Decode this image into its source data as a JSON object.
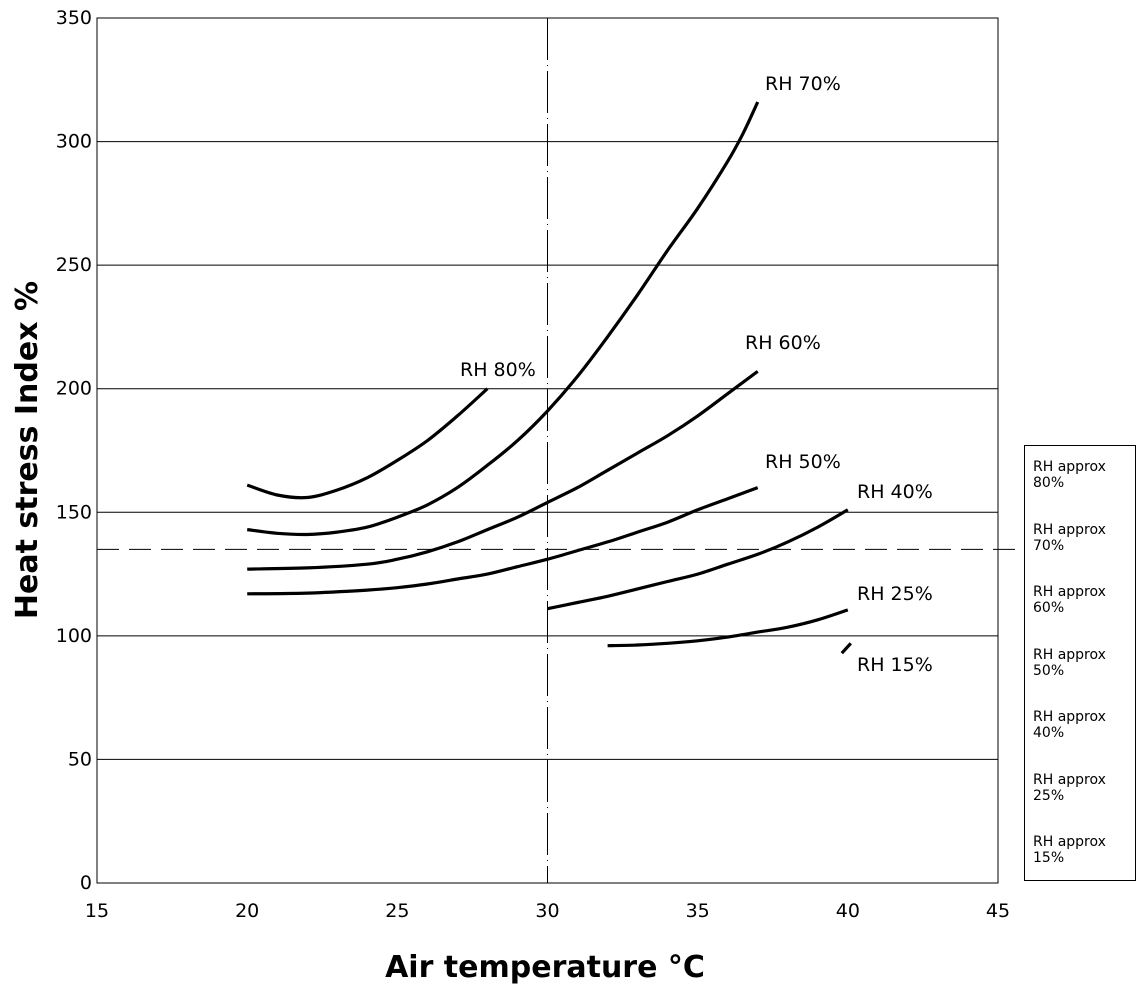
{
  "chart_data": {
    "type": "line",
    "xlabel": "Air temperature °C",
    "ylabel": "Heat stress Index %",
    "xlim": [
      15,
      45
    ],
    "ylim": [
      0,
      350
    ],
    "xticks": [
      "15",
      "20",
      "25",
      "30",
      "35",
      "40",
      "45"
    ],
    "yticks": [
      "0",
      "50",
      "100",
      "150",
      "200",
      "250",
      "300",
      "350"
    ],
    "grid": "horizontal",
    "reference_lines": [
      {
        "orientation": "vertical",
        "value": 30,
        "style": "dash-dot"
      },
      {
        "orientation": "horizontal",
        "value": 135,
        "style": "dashed"
      }
    ],
    "series": [
      {
        "name": "RH 80%",
        "x": [
          20,
          21,
          22,
          23,
          24,
          25,
          26,
          27,
          28
        ],
        "y": [
          161,
          157,
          156,
          159,
          164,
          171,
          179,
          189,
          200
        ]
      },
      {
        "name": "RH 70%",
        "x": [
          20,
          21,
          22,
          23,
          24,
          25,
          26,
          27,
          28,
          29,
          30,
          31,
          32,
          33,
          34,
          35,
          36,
          36.5,
          37
        ],
        "y": [
          143,
          141.5,
          141,
          142,
          144,
          148,
          153,
          160,
          169,
          179,
          191,
          205,
          221,
          238,
          256,
          273,
          292,
          303,
          316
        ]
      },
      {
        "name": "RH 60%",
        "x": [
          20,
          22,
          24,
          25,
          26,
          27,
          28,
          29,
          30,
          31,
          32,
          33,
          34,
          35,
          36,
          37
        ],
        "y": [
          127,
          127.5,
          129,
          131,
          134,
          138,
          143,
          148,
          154,
          160,
          167,
          174,
          181,
          189,
          198,
          207
        ]
      },
      {
        "name": "RH 50%",
        "x": [
          20,
          22,
          24,
          25,
          26,
          27,
          28,
          29,
          30,
          31,
          32,
          33,
          34,
          35,
          36,
          37
        ],
        "y": [
          117,
          117.3,
          118.5,
          119.5,
          121,
          123,
          125,
          128,
          131,
          134.5,
          138,
          142,
          146,
          151,
          155.5,
          160
        ]
      },
      {
        "name": "RH 40%",
        "x": [
          30,
          31,
          32,
          33,
          34,
          35,
          36,
          37,
          38,
          39,
          40
        ],
        "y": [
          111,
          113.5,
          116,
          119,
          122,
          125,
          129,
          133,
          138,
          144,
          151
        ]
      },
      {
        "name": "RH 25%",
        "x": [
          32,
          33,
          34,
          35,
          36,
          37,
          38,
          39,
          40
        ],
        "y": [
          96,
          96.3,
          97,
          98,
          99.5,
          101.5,
          103.5,
          106.5,
          110.5
        ]
      },
      {
        "name": "RH 15%",
        "x": [
          39.8,
          40.1
        ],
        "y": [
          93,
          97
        ]
      }
    ],
    "curve_labels": [
      "RH 80%",
      "RH 70%",
      "RH 60%",
      "RH 50%",
      "RH 40%",
      "RH 25%",
      "RH 15%"
    ],
    "legend_entries": [
      "RH approx\n80%",
      "RH approx\n70%",
      "RH approx\n60%",
      "RH approx\n50%",
      "RH approx\n40%",
      "RH approx\n25%",
      "RH approx\n15%"
    ],
    "legend_position": "right"
  }
}
